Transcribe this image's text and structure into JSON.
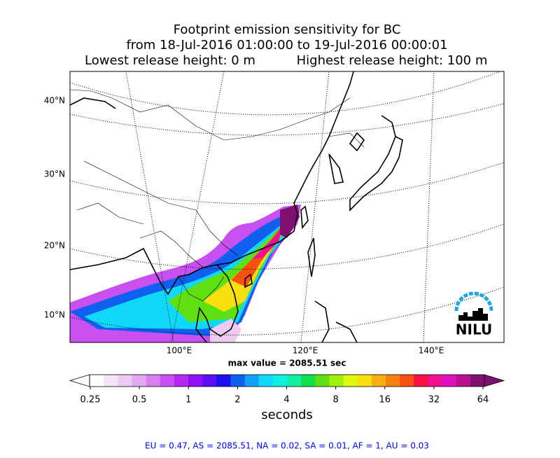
{
  "title": {
    "line1": "Footprint emission sensitivity for BC",
    "line2": "from 18-Jul-2016 01:00:00 to 19-Jul-2016 00:00:01",
    "line3_left": "Lowest release height: 0 m",
    "line3_right": "Highest release height: 100 m"
  },
  "map": {
    "lat_labels": [
      "40°N",
      "30°N",
      "20°N",
      "10°N"
    ],
    "lon_labels": [
      "100°E",
      "120°E",
      "140°E"
    ],
    "max_value": "max value = 2085.51 sec",
    "logo": "NILU"
  },
  "colorbar": {
    "ticks": [
      0.25,
      0.5,
      1,
      2,
      4,
      8,
      16,
      32,
      64
    ],
    "label": "seconds",
    "colors": [
      "#ffffff",
      "#f6e3f8",
      "#eccaf2",
      "#e3a9ee",
      "#d97ff0",
      "#c850f0",
      "#b328f2",
      "#8f10f2",
      "#5a10f0",
      "#1a10f0",
      "#1060f0",
      "#10a0f8",
      "#10d8f8",
      "#10f0e0",
      "#10f0a0",
      "#10e050",
      "#60e010",
      "#a0f010",
      "#e0f810",
      "#f8e010",
      "#f8b010",
      "#f88010",
      "#f85010",
      "#f81040",
      "#f01090",
      "#e010c0",
      "#b81090",
      "#801070"
    ]
  },
  "footer": "EU = 0.47,  AS = 2085.51,  NA = 0.02,  SA = 0.01,  AF = 1,  AU = 0.03"
}
